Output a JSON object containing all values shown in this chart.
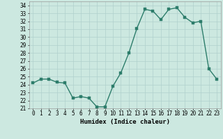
{
  "xlabel": "Humidex (Indice chaleur)",
  "x": [
    0,
    1,
    2,
    3,
    4,
    5,
    6,
    7,
    8,
    9,
    10,
    11,
    12,
    13,
    14,
    15,
    16,
    17,
    18,
    19,
    20,
    21,
    22,
    23
  ],
  "y": [
    24.2,
    24.7,
    24.7,
    24.3,
    24.2,
    22.3,
    22.5,
    22.3,
    21.2,
    21.2,
    23.8,
    25.5,
    28.0,
    31.1,
    33.5,
    33.3,
    32.2,
    33.5,
    33.7,
    32.5,
    31.8,
    32.0,
    26.0,
    24.7
  ],
  "line_color": "#2d7d6b",
  "marker_color": "#2d7d6b",
  "bg_color": "#cce8e0",
  "grid_color": "#b0d0cc",
  "ylim": [
    21,
    34.5
  ],
  "xlim": [
    -0.5,
    23.5
  ],
  "yticks": [
    21,
    22,
    23,
    24,
    25,
    26,
    27,
    28,
    29,
    30,
    31,
    32,
    33,
    34
  ],
  "xticks": [
    0,
    1,
    2,
    3,
    4,
    5,
    6,
    7,
    8,
    9,
    10,
    11,
    12,
    13,
    14,
    15,
    16,
    17,
    18,
    19,
    20,
    21,
    22,
    23
  ],
  "tick_fontsize": 5.5,
  "xlabel_fontsize": 6.5,
  "marker_size": 2.5,
  "line_width": 1.0
}
